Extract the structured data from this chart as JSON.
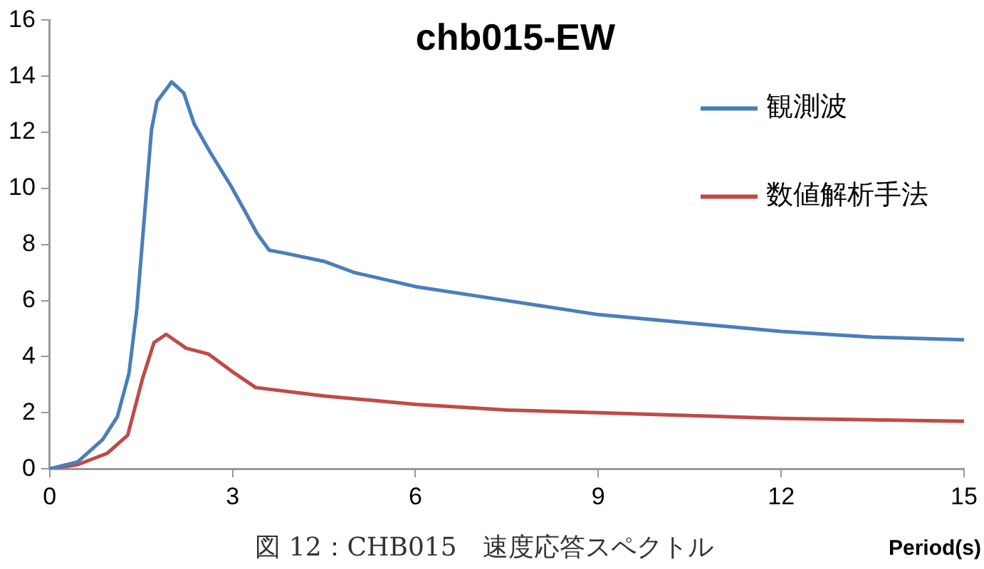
{
  "chart_data": {
    "type": "line",
    "title": "chb015-EW",
    "xlabel": "Period(s)",
    "annotations": [
      "図 12：CHB015　速度応答スペクトル"
    ],
    "xlim": [
      0,
      15
    ],
    "xticks": [
      0,
      3,
      6,
      9,
      12,
      15
    ],
    "ylim": [
      0,
      16
    ],
    "yticks": [
      0,
      2,
      4,
      6,
      8,
      10,
      12,
      14,
      16
    ],
    "grid": false,
    "legend": "right",
    "marker": "none",
    "line_style": "solid",
    "series": [
      {
        "name": "観測波",
        "color": "#4a7ebb",
        "x": [
          0,
          0.46,
          0.87,
          1.11,
          1.3,
          1.43,
          1.55,
          1.67,
          1.76,
          2.0,
          2.2,
          2.37,
          2.63,
          2.97,
          3.2,
          3.4,
          3.6,
          3.84,
          4.5,
          5,
          6,
          7.5,
          9,
          10.5,
          12,
          13.5,
          15
        ],
        "values": [
          0,
          0.25,
          1.05,
          1.86,
          3.4,
          5.7,
          8.9,
          12.1,
          13.1,
          13.8,
          13.4,
          12.3,
          11.3,
          10.1,
          9.2,
          8.4,
          7.8,
          7.7,
          7.4,
          7.0,
          6.5,
          6.0,
          5.5,
          5.2,
          4.9,
          4.7,
          4.6
        ]
      },
      {
        "name": "数値解析手法",
        "color": "#be4b48",
        "x": [
          0,
          0.46,
          0.94,
          1.28,
          1.52,
          1.71,
          1.91,
          2.24,
          2.6,
          3.04,
          3.38,
          4.5,
          6,
          7.5,
          9,
          10.5,
          12,
          13.5,
          15
        ],
        "values": [
          0,
          0.15,
          0.55,
          1.2,
          3.2,
          4.5,
          4.8,
          4.3,
          4.1,
          3.4,
          2.9,
          2.6,
          2.3,
          2.1,
          2.0,
          1.9,
          1.8,
          1.75,
          1.7
        ]
      }
    ]
  }
}
